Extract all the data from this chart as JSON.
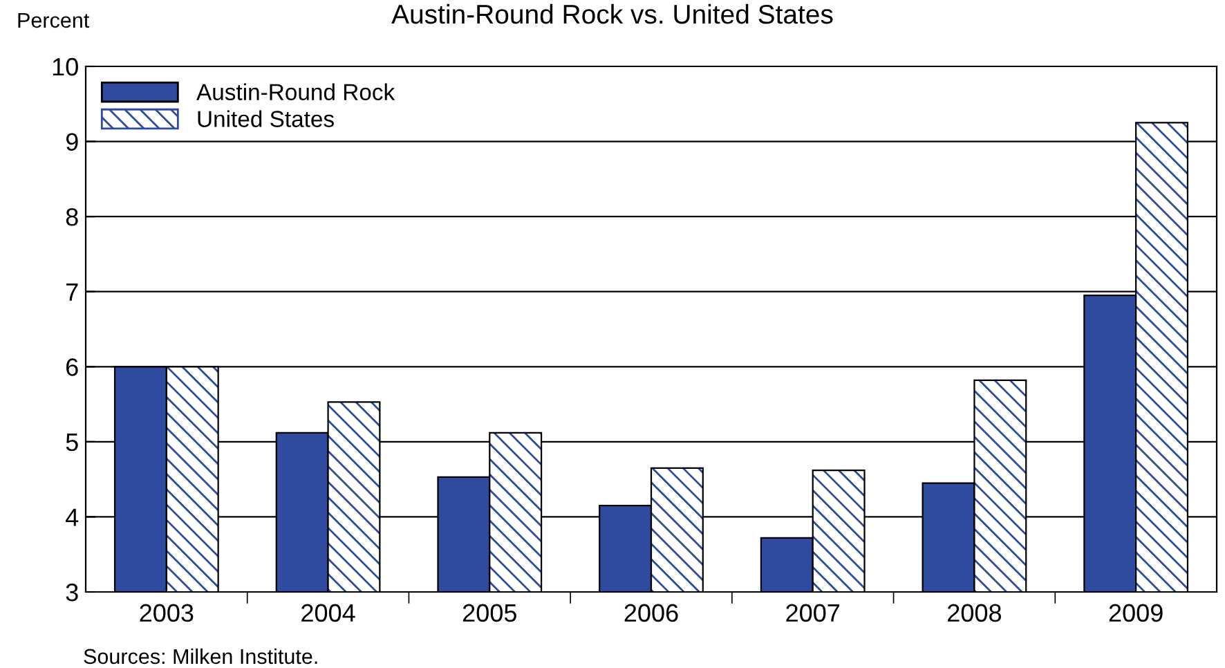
{
  "chart_data": {
    "type": "bar",
    "title": "Austin-Round Rock vs. United States",
    "ylabel": "Percent",
    "categories": [
      "2003",
      "2004",
      "2005",
      "2006",
      "2007",
      "2008",
      "2009"
    ],
    "series": [
      {
        "name": "Austin-Round Rock",
        "color": "#2e4b9f",
        "values": [
          6.0,
          5.12,
          4.53,
          4.15,
          3.72,
          4.45,
          6.95
        ]
      },
      {
        "name": "United States",
        "color": "#2e4b9f",
        "values": [
          6.0,
          5.53,
          5.12,
          4.65,
          4.62,
          5.82,
          9.25
        ]
      }
    ],
    "ylim": [
      3,
      10
    ],
    "yticks": [
      3,
      4,
      5,
      6,
      7,
      8,
      9,
      10
    ],
    "grid": "y",
    "legend": "top left",
    "annotations": [
      "Sources: Milken Institute."
    ]
  }
}
